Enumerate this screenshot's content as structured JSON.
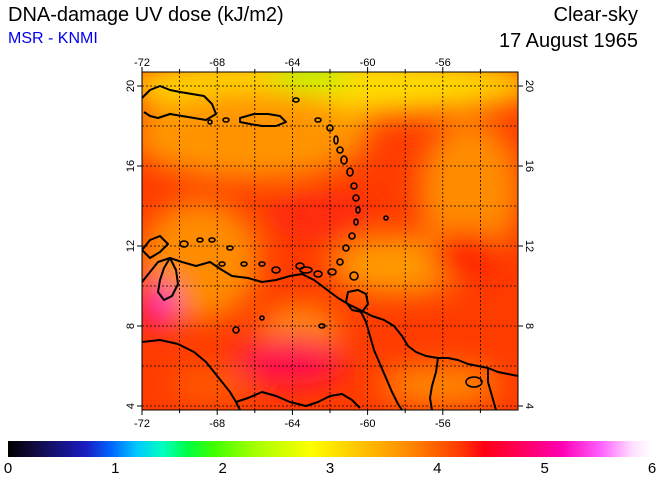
{
  "header": {
    "title": "DNA-damage UV dose (kJ/m2)",
    "source": "MSR - KNMI",
    "condition": "Clear-sky",
    "date": "17 August 1965"
  },
  "map": {
    "lon_ticks": [
      "-72",
      "-68",
      "-64",
      "-60",
      "-56"
    ],
    "lat_ticks": [
      "20",
      "16",
      "12",
      "8",
      "4"
    ],
    "grid": true,
    "field_colors": {
      "background": "#ff3c00",
      "orange_patches": "#ff8c00",
      "yellow_north": "#ffdd00",
      "green_top": "#aaff00",
      "magenta_west": "#ff00c8",
      "pink_south": "#ff0064"
    }
  },
  "colorbar": {
    "labels": [
      "0",
      "1",
      "2",
      "3",
      "4",
      "5",
      "6"
    ],
    "min": 0,
    "max": 6
  }
}
